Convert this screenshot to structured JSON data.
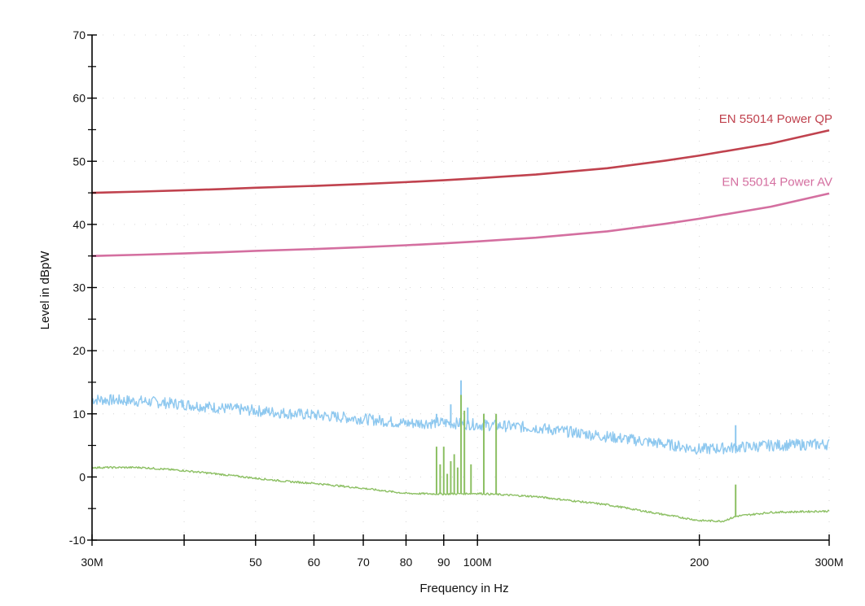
{
  "chart_data": {
    "type": "line",
    "title": "",
    "xlabel": "Frequency in Hz",
    "ylabel": "Level in dBpW",
    "x_scale": "log",
    "xlim": [
      30000000,
      300000000
    ],
    "ylim": [
      -10,
      70
    ],
    "x_ticks": [
      {
        "value": 30000000,
        "label": "30M"
      },
      {
        "value": 50000000,
        "label": "50"
      },
      {
        "value": 60000000,
        "label": "60"
      },
      {
        "value": 70000000,
        "label": "70"
      },
      {
        "value": 80000000,
        "label": "80"
      },
      {
        "value": 90000000,
        "label": "90"
      },
      {
        "value": 100000000,
        "label": "100M"
      },
      {
        "value": 200000000,
        "label": "200"
      },
      {
        "value": 300000000,
        "label": "300M"
      }
    ],
    "x_minor_ticks": [
      40000000
    ],
    "y_ticks": [
      {
        "value": -10,
        "label": "-10"
      },
      {
        "value": 0,
        "label": "0"
      },
      {
        "value": 10,
        "label": "10"
      },
      {
        "value": 20,
        "label": "20"
      },
      {
        "value": 30,
        "label": "30"
      },
      {
        "value": 40,
        "label": "40"
      },
      {
        "value": 50,
        "label": "50"
      },
      {
        "value": 60,
        "label": "60"
      },
      {
        "value": 70,
        "label": "70"
      }
    ],
    "y_minor_ticks": [
      -5,
      5,
      15,
      25,
      35,
      45,
      55,
      65
    ],
    "grid": true,
    "series": [
      {
        "name": "EN 55014 Power QP",
        "color": "#c0424e",
        "label_anchor": {
          "x": 300000000,
          "y": 54.8
        },
        "x": [
          30000000,
          35000000,
          40000000,
          45000000,
          50000000,
          60000000,
          70000000,
          80000000,
          90000000,
          100000000,
          120000000,
          150000000,
          180000000,
          200000000,
          250000000,
          300000000
        ],
        "values": [
          45.0,
          45.2,
          45.4,
          45.6,
          45.8,
          46.1,
          46.4,
          46.7,
          47.0,
          47.3,
          47.9,
          48.9,
          50.1,
          50.9,
          52.8,
          54.9
        ]
      },
      {
        "name": "EN 55014 Power AV",
        "color": "#d46fa0",
        "label_anchor": {
          "x": 300000000,
          "y": 44.8
        },
        "x": [
          30000000,
          35000000,
          40000000,
          45000000,
          50000000,
          60000000,
          70000000,
          80000000,
          90000000,
          100000000,
          120000000,
          150000000,
          180000000,
          200000000,
          250000000,
          300000000
        ],
        "values": [
          35.0,
          35.2,
          35.4,
          35.6,
          35.8,
          36.1,
          36.4,
          36.7,
          37.0,
          37.3,
          37.9,
          38.9,
          40.1,
          40.9,
          42.8,
          44.9
        ]
      },
      {
        "name": "",
        "color": "#8ec8ef",
        "noise": 0.9,
        "x": [
          30000000,
          35000000,
          40000000,
          45000000,
          50000000,
          55000000,
          60000000,
          70000000,
          80000000,
          90000000,
          100000000,
          120000000,
          150000000,
          180000000,
          200000000,
          220000000,
          250000000,
          300000000
        ],
        "values": [
          12.3,
          12.0,
          11.5,
          10.9,
          10.5,
          10.1,
          9.8,
          9.2,
          8.5,
          8.6,
          8.3,
          7.8,
          6.4,
          5.2,
          4.4,
          4.6,
          5.0,
          5.2
        ],
        "spikes": [
          {
            "x": 88000000,
            "y": 10.0
          },
          {
            "x": 92000000,
            "y": 11.5
          },
          {
            "x": 95000000,
            "y": 15.3
          },
          {
            "x": 97000000,
            "y": 11.0
          },
          {
            "x": 102000000,
            "y": 10.0
          },
          {
            "x": 106000000,
            "y": 9.8
          },
          {
            "x": 224000000,
            "y": 8.2
          }
        ]
      },
      {
        "name": "",
        "color": "#8dc064",
        "noise": 0.15,
        "x": [
          30000000,
          35000000,
          40000000,
          45000000,
          50000000,
          55000000,
          60000000,
          70000000,
          80000000,
          90000000,
          100000000,
          120000000,
          150000000,
          180000000,
          200000000,
          215000000,
          225000000,
          250000000,
          300000000
        ],
        "values": [
          1.5,
          1.5,
          1.0,
          0.4,
          -0.2,
          -0.7,
          -1.0,
          -1.8,
          -2.6,
          -2.7,
          -2.6,
          -3.1,
          -4.4,
          -6.0,
          -6.9,
          -7.0,
          -6.2,
          -5.6,
          -5.4
        ],
        "spikes": [
          {
            "x": 88000000,
            "y": 4.8
          },
          {
            "x": 89000000,
            "y": 2.0
          },
          {
            "x": 90000000,
            "y": 4.8
          },
          {
            "x": 91000000,
            "y": 0.5
          },
          {
            "x": 92000000,
            "y": 2.5
          },
          {
            "x": 93000000,
            "y": 3.6
          },
          {
            "x": 94000000,
            "y": 1.5
          },
          {
            "x": 95000000,
            "y": 13.0
          },
          {
            "x": 96000000,
            "y": 10.5
          },
          {
            "x": 98000000,
            "y": 2.0
          },
          {
            "x": 102000000,
            "y": 10.0
          },
          {
            "x": 106000000,
            "y": 10.0
          },
          {
            "x": 224000000,
            "y": -1.2
          }
        ]
      }
    ]
  }
}
